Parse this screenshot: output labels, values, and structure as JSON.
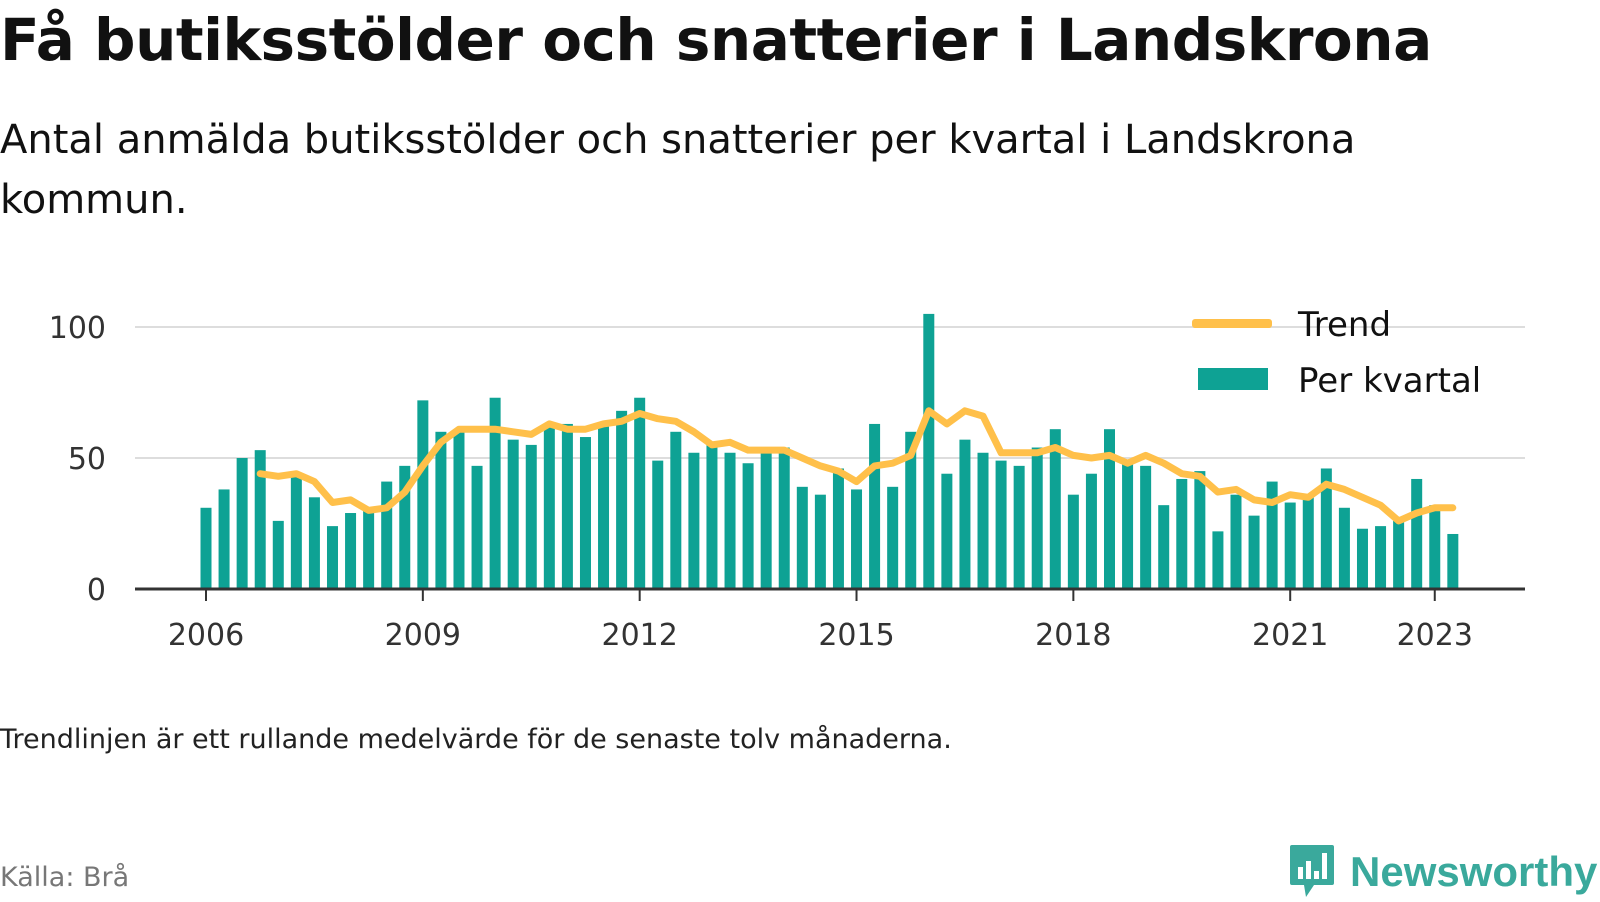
{
  "title": "Få butiksstölder och snatterier i Landskrona",
  "subtitle": "Antal anmälda butiksstölder och snatterier per kvartal i Landskrona kommun.",
  "note": "Trendlinjen är ett rullande medelvärde för de senaste tolv månaderna.",
  "source": "Källa: Brå",
  "brand": {
    "name": "Newsworthy",
    "logo_icon": "bar-chart-speech-bubble-icon"
  },
  "colors": {
    "bars": "#0ea294",
    "trend": "#ffc04a",
    "grid": "#dddddd",
    "axis": "#333333",
    "brand": "#3aa99c"
  },
  "chart_data": {
    "type": "bar",
    "x_start": "2006 Q1",
    "x_frequency": "quarter",
    "ylim": [
      0,
      100
    ],
    "y_ticks": [
      0,
      50,
      100
    ],
    "x_ticks": [
      "2006",
      "2009",
      "2012",
      "2015",
      "2018",
      "2021",
      "2023"
    ],
    "grid": true,
    "legend_position": "top-right",
    "series": [
      {
        "name": "Per kvartal",
        "type": "bar",
        "values": [
          31,
          38,
          50,
          53,
          26,
          43,
          35,
          24,
          29,
          30,
          41,
          47,
          72,
          60,
          60,
          47,
          73,
          57,
          55,
          62,
          63,
          58,
          62,
          68,
          73,
          49,
          60,
          52,
          55,
          52,
          48,
          53,
          54,
          39,
          36,
          46,
          38,
          63,
          39,
          60,
          105,
          44,
          57,
          52,
          49,
          47,
          54,
          61,
          36,
          44,
          61,
          48,
          47,
          32,
          42,
          45,
          22,
          36,
          28,
          41,
          33,
          35,
          46,
          31,
          23,
          24,
          26,
          42,
          32,
          21
        ]
      },
      {
        "name": "Trend",
        "type": "line",
        "start_index": 3,
        "values": [
          44,
          43,
          44,
          41,
          33,
          34,
          30,
          31,
          37,
          47,
          56,
          61,
          61,
          61,
          60,
          59,
          63,
          61,
          61,
          63,
          64,
          67,
          65,
          64,
          60,
          55,
          56,
          53,
          53,
          53,
          50,
          47,
          45,
          41,
          47,
          48,
          51,
          68,
          63,
          68,
          66,
          52,
          52,
          52,
          54,
          51,
          50,
          51,
          48,
          51,
          48,
          44,
          43,
          37,
          38,
          34,
          33,
          36,
          35,
          40,
          38,
          35,
          32,
          26,
          29,
          31,
          31
        ]
      }
    ]
  }
}
